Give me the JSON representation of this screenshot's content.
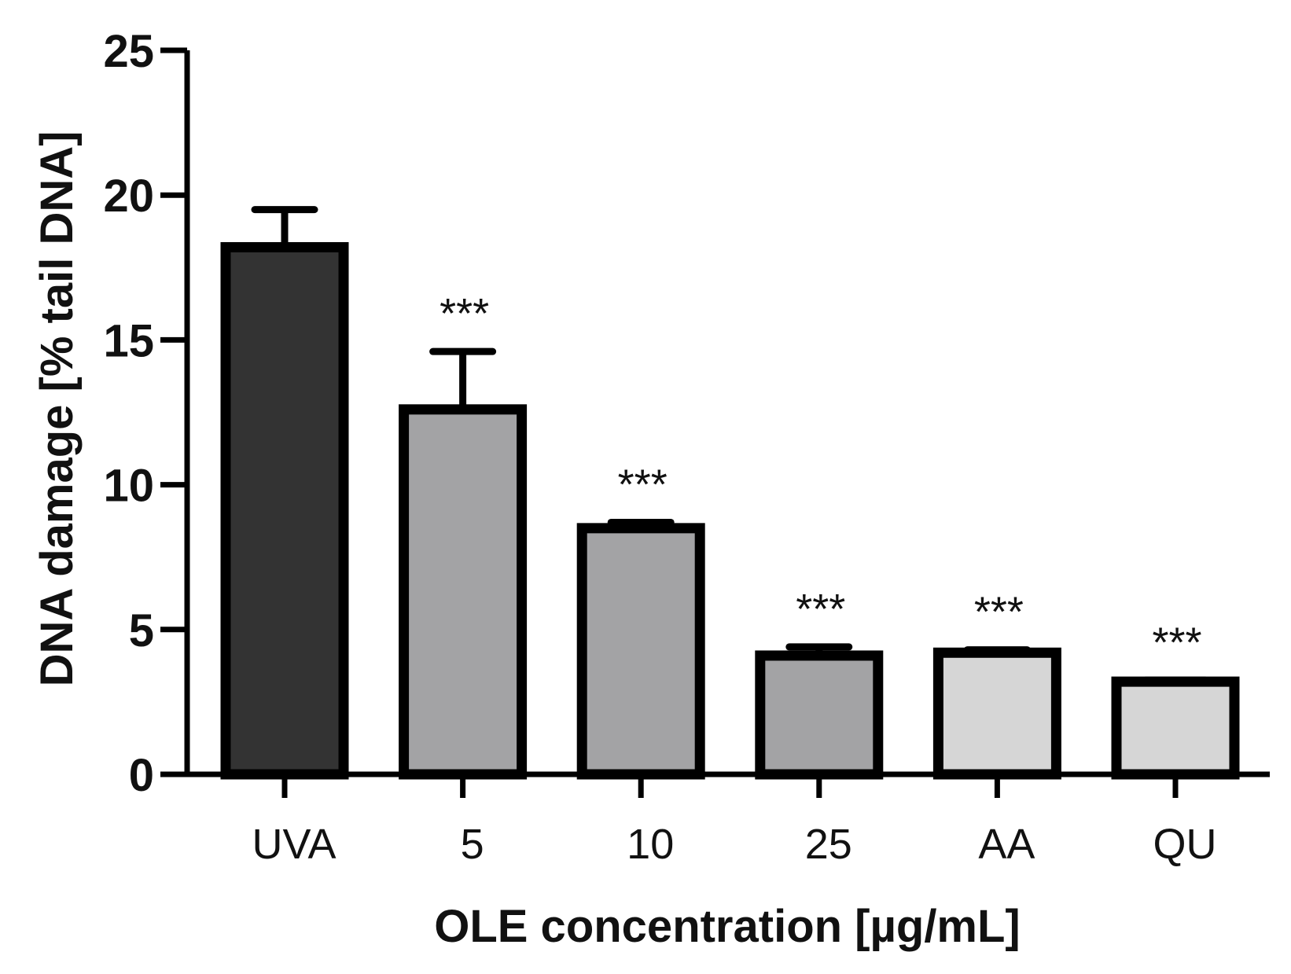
{
  "chart_data": {
    "type": "bar",
    "title": "",
    "xlabel": "OLE concentration [µg/mL]",
    "ylabel": "DNA damage  [% tail DNA]",
    "ylim": [
      0,
      25
    ],
    "yticks": [
      0,
      5,
      10,
      15,
      20,
      25
    ],
    "ytick_labels": [
      "0",
      "5",
      "10",
      "15",
      "20",
      "25"
    ],
    "grid": false,
    "legend": "none",
    "categories": [
      "UVA",
      "5",
      "10",
      "25",
      "AA",
      "QU"
    ],
    "values": [
      18.2,
      12.6,
      8.5,
      4.1,
      4.2,
      3.2
    ],
    "errors": [
      1.3,
      2.0,
      0.2,
      0.3,
      0.1,
      0.05
    ],
    "significance": [
      "",
      "***",
      "***",
      "***",
      "***",
      "***"
    ],
    "bar_colors": [
      "#333333",
      "#a3a3a5",
      "#a3a3a5",
      "#a3a3a5",
      "#d6d6d6",
      "#d6d6d6"
    ]
  }
}
